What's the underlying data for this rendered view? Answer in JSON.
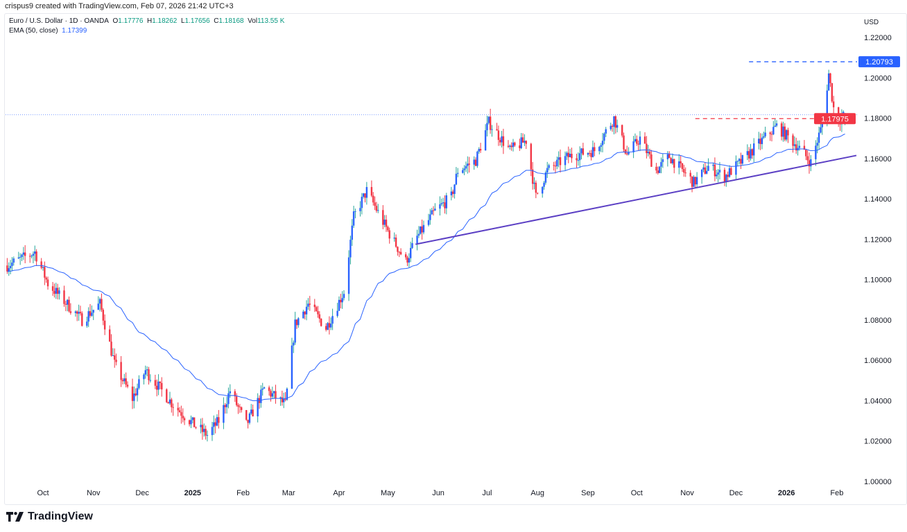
{
  "credit": "crispus9 created with TradingView.com, Feb 07, 2026 21:42 UTC+3",
  "legend": {
    "symbol": "Euro / U.S. Dollar · 1D · OANDA",
    "o_label": "O",
    "o": "1.17776",
    "h_label": "H",
    "h": "1.18262",
    "l_label": "L",
    "l": "1.17656",
    "c_label": "C",
    "c": "1.18168",
    "vol_label": "Vol",
    "vol": "113.55 K",
    "ema_label": "EMA (50, close)",
    "ema": "1.17399"
  },
  "logo_text": "TradingView",
  "chart_data": {
    "type": "candlestick",
    "currency": "USD",
    "ylim": [
      1.0,
      1.22
    ],
    "y_ticks": [
      "1.22000",
      "1.20000",
      "1.18000",
      "1.16000",
      "1.14000",
      "1.12000",
      "1.10000",
      "1.08000",
      "1.06000",
      "1.04000",
      "1.02000",
      "1.00000"
    ],
    "x_ticks": [
      {
        "label": "Oct",
        "date": "2024-10-01",
        "bold": false
      },
      {
        "label": "Nov",
        "date": "2024-11-01",
        "bold": false
      },
      {
        "label": "Dec",
        "date": "2024-12-01",
        "bold": false
      },
      {
        "label": "2025",
        "date": "2025-01-01",
        "bold": true
      },
      {
        "label": "Feb",
        "date": "2025-02-01",
        "bold": false
      },
      {
        "label": "Mar",
        "date": "2025-03-01",
        "bold": false
      },
      {
        "label": "Apr",
        "date": "2025-04-01",
        "bold": false
      },
      {
        "label": "May",
        "date": "2025-05-01",
        "bold": false
      },
      {
        "label": "Jun",
        "date": "2025-06-01",
        "bold": false
      },
      {
        "label": "Jul",
        "date": "2025-07-01",
        "bold": false
      },
      {
        "label": "Aug",
        "date": "2025-08-01",
        "bold": false
      },
      {
        "label": "Sep",
        "date": "2025-09-01",
        "bold": false
      },
      {
        "label": "Oct",
        "date": "2025-10-01",
        "bold": false
      },
      {
        "label": "Nov",
        "date": "2025-11-01",
        "bold": false
      },
      {
        "label": "Dec",
        "date": "2025-12-01",
        "bold": false
      },
      {
        "label": "2026",
        "date": "2026-01-01",
        "bold": true
      },
      {
        "label": "Feb",
        "date": "2026-02-01",
        "bold": false
      }
    ],
    "close_path": [
      [
        "2024-09-09",
        1.107
      ],
      [
        "2024-09-26",
        1.1136
      ],
      [
        "2024-10-04",
        1.098
      ],
      [
        "2024-10-25",
        1.08
      ],
      [
        "2024-11-05",
        1.088
      ],
      [
        "2024-11-14",
        1.058
      ],
      [
        "2024-11-25",
        1.041
      ],
      [
        "2024-12-03",
        1.055
      ],
      [
        "2024-12-20",
        1.038
      ],
      [
        "2025-01-02",
        1.028
      ],
      [
        "2025-01-10",
        1.023
      ],
      [
        "2025-01-17",
        1.03
      ],
      [
        "2025-01-24",
        1.045
      ],
      [
        "2025-02-03",
        1.028
      ],
      [
        "2025-02-14",
        1.046
      ],
      [
        "2025-02-27",
        1.038
      ],
      [
        "2025-03-05",
        1.078
      ],
      [
        "2025-03-13",
        1.088
      ],
      [
        "2025-03-24",
        1.076
      ],
      [
        "2025-04-04",
        1.094
      ],
      [
        "2025-04-10",
        1.131
      ],
      [
        "2025-04-18",
        1.144
      ],
      [
        "2025-05-01",
        1.124
      ],
      [
        "2025-05-12",
        1.109
      ],
      [
        "2025-05-19",
        1.121
      ],
      [
        "2025-05-30",
        1.134
      ],
      [
        "2025-06-09",
        1.141
      ],
      [
        "2025-06-13",
        1.154
      ],
      [
        "2025-06-24",
        1.159
      ],
      [
        "2025-07-02",
        1.178
      ],
      [
        "2025-07-15",
        1.164
      ],
      [
        "2025-07-25",
        1.169
      ],
      [
        "2025-07-31",
        1.141
      ],
      [
        "2025-08-07",
        1.154
      ],
      [
        "2025-08-20",
        1.161
      ],
      [
        "2025-09-05",
        1.164
      ],
      [
        "2025-09-17",
        1.18
      ],
      [
        "2025-09-25",
        1.162
      ],
      [
        "2025-10-03",
        1.17
      ],
      [
        "2025-10-13",
        1.154
      ],
      [
        "2025-10-21",
        1.161
      ],
      [
        "2025-11-05",
        1.148
      ],
      [
        "2025-11-14",
        1.156
      ],
      [
        "2025-11-24",
        1.151
      ],
      [
        "2025-12-05",
        1.159
      ],
      [
        "2025-12-17",
        1.169
      ],
      [
        "2025-12-26",
        1.176
      ],
      [
        "2026-01-08",
        1.166
      ],
      [
        "2026-01-16",
        1.158
      ],
      [
        "2026-01-23",
        1.177
      ],
      [
        "2026-01-27",
        1.202
      ],
      [
        "2026-01-30",
        1.185
      ],
      [
        "2026-02-02",
        1.179
      ],
      [
        "2026-02-06",
        1.18168
      ]
    ],
    "ema_period": 50,
    "trendline": {
      "from": [
        "2025-05-18",
        1.1175
      ],
      "to": [
        "2026-02-13",
        1.1615
      ],
      "color": "#5b3fc4"
    },
    "levels": [
      {
        "label": "1.20793",
        "value": 1.20793,
        "from": "2025-12-09",
        "color": "#2962ff"
      },
      {
        "label": "1.17975",
        "value": 1.17975,
        "from": "2025-11-06",
        "color": "#f23645"
      }
    ],
    "last_price": 1.18168,
    "up_color": "#2962ff",
    "up_wick_color": "#26a69a",
    "down_color": "#f23645",
    "ema_color": "#2962ff"
  }
}
